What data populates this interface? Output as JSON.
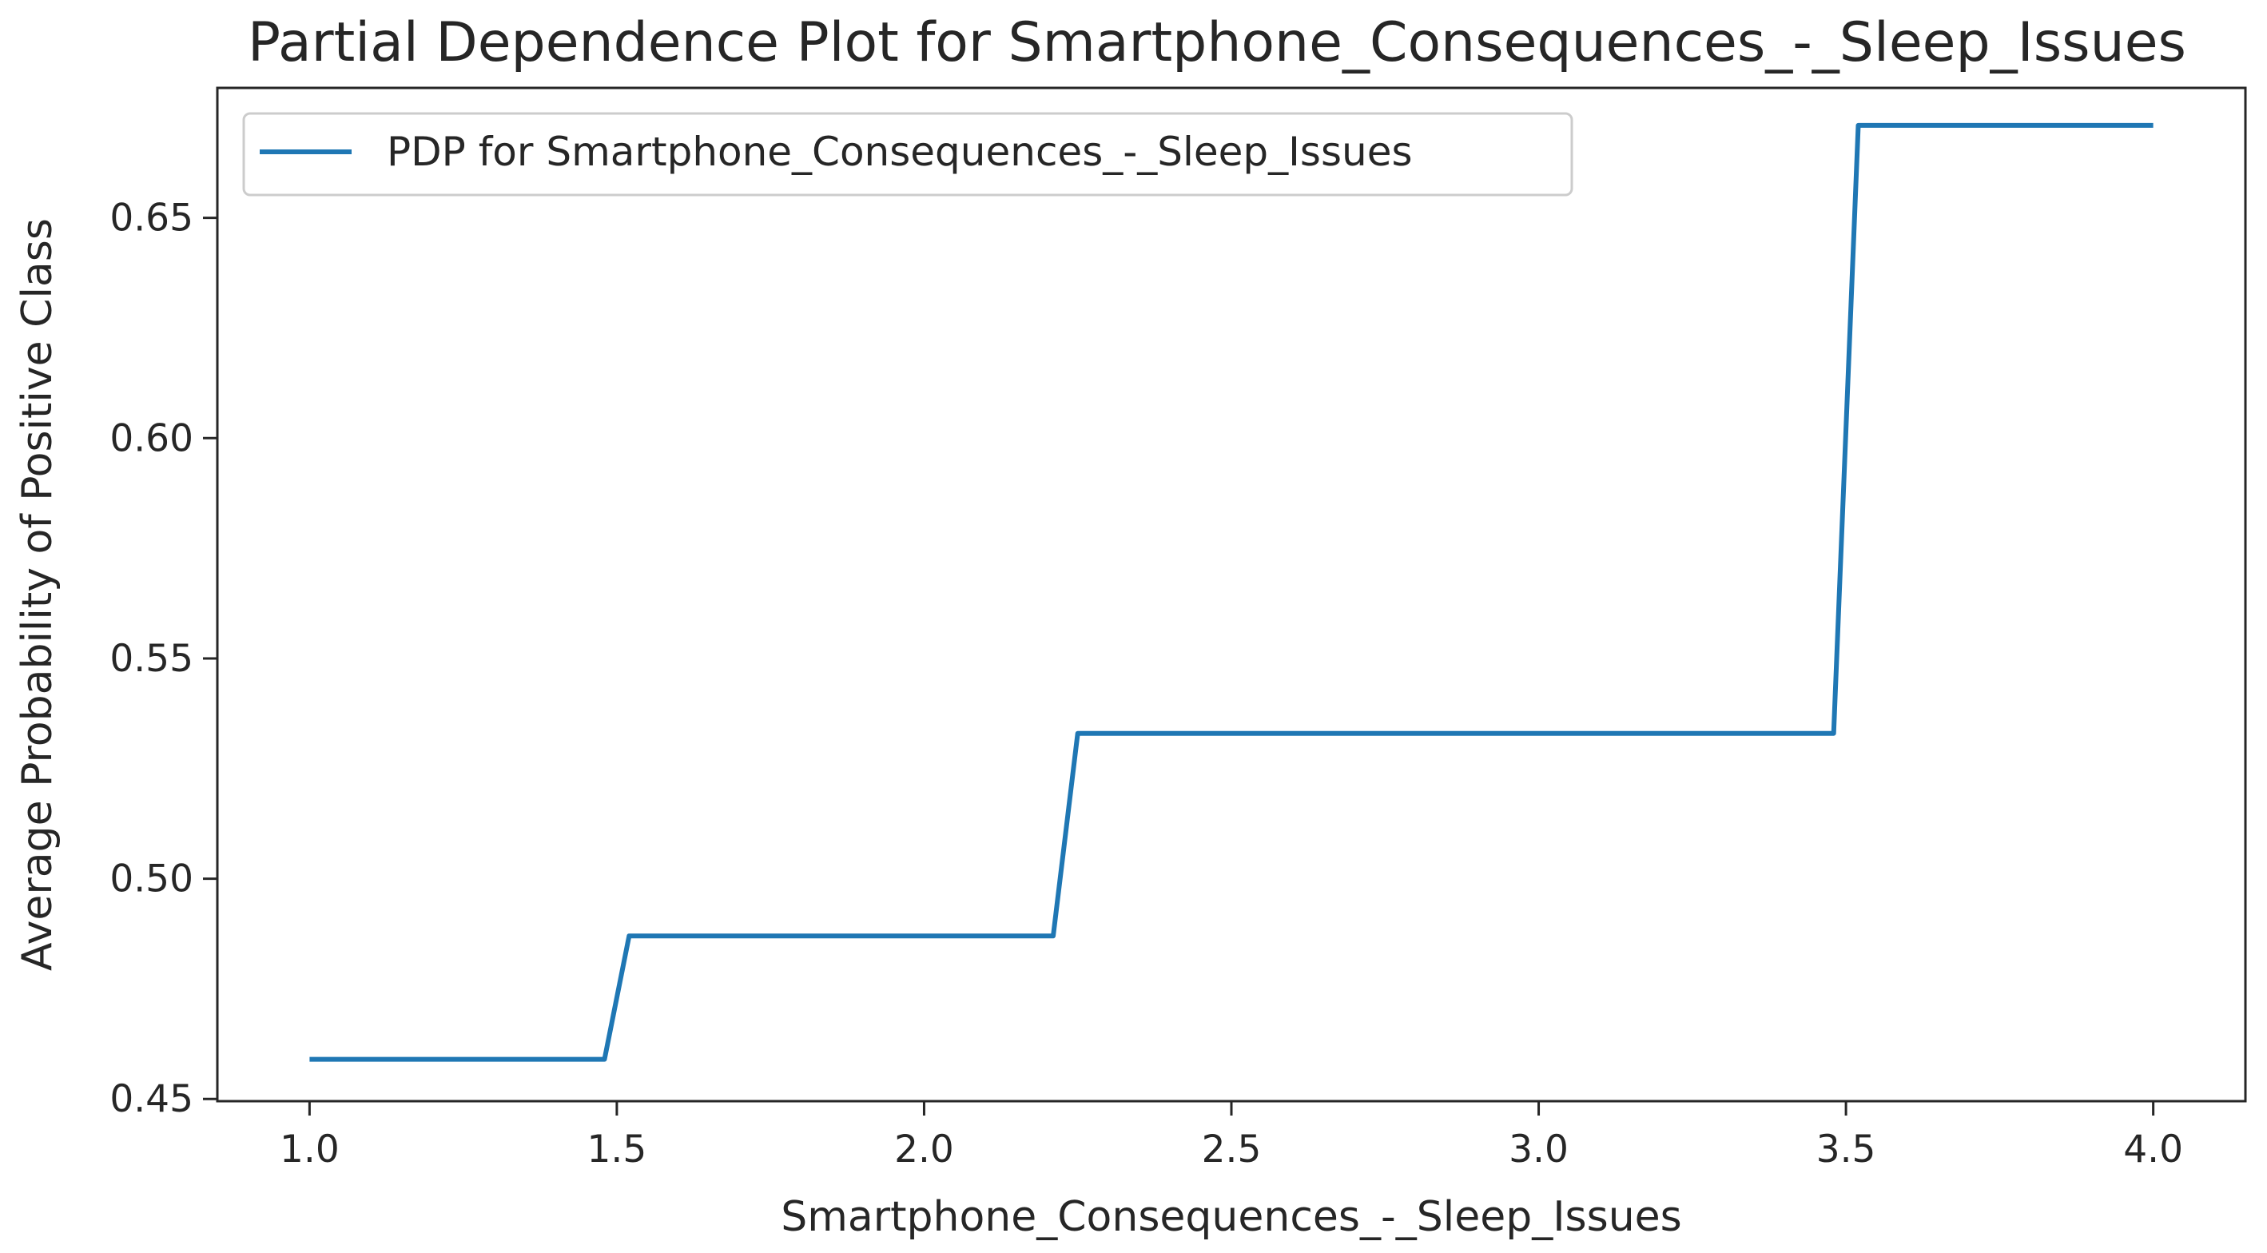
{
  "chart_data": {
    "type": "line",
    "title": "Partial Dependence Plot for Smartphone_Consequences_-_Sleep_Issues",
    "xlabel": "Smartphone_Consequences_-_Sleep_Issues",
    "ylabel": "Average Probability of Positive Class",
    "xlim": [
      0.85,
      4.15
    ],
    "ylim": [
      0.4495,
      0.6795
    ],
    "xticks": [
      1.0,
      1.5,
      2.0,
      2.5,
      3.0,
      3.5,
      4.0
    ],
    "xtick_labels": [
      "1.0",
      "1.5",
      "2.0",
      "2.5",
      "3.0",
      "3.5",
      "4.0"
    ],
    "yticks": [
      0.45,
      0.5,
      0.55,
      0.6,
      0.65
    ],
    "ytick_labels": [
      "0.45",
      "0.50",
      "0.55",
      "0.60",
      "0.65"
    ],
    "grid": false,
    "legend_position": "top-left",
    "series": [
      {
        "name": "PDP for Smartphone_Consequences_-_Sleep_Issues",
        "color": "#1f77b4",
        "x": [
          1.0,
          1.48,
          1.52,
          2.21,
          2.25,
          3.48,
          3.52,
          4.0
        ],
        "y": [
          0.459,
          0.459,
          0.487,
          0.487,
          0.533,
          0.533,
          0.671,
          0.671
        ]
      }
    ]
  }
}
